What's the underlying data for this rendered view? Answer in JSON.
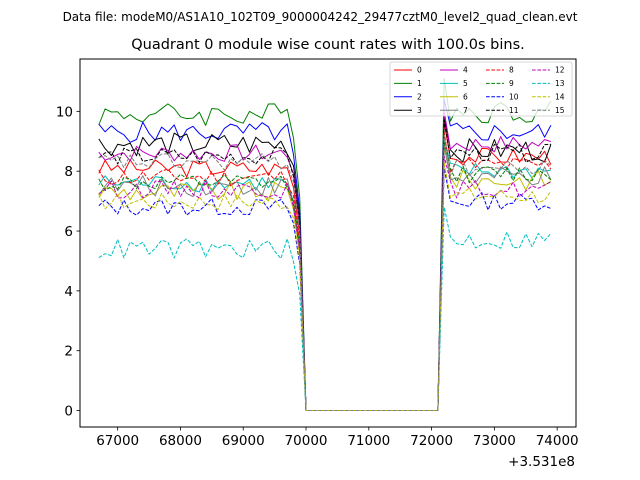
{
  "chart_data": {
    "type": "line",
    "suptitle": "Data file: modeM0/AS1A10_102T09_9000004242_29477cztM0_level2_quad_clean.evt",
    "title": "Quadrant 0 module wise count rates with 100.0s bins.",
    "xlabel": "",
    "ylabel": "",
    "x_offset_label": "+3.531e8",
    "xlim": [
      66400,
      74300
    ],
    "ylim": [
      -0.55,
      11.75
    ],
    "xticks": [
      67000,
      68000,
      69000,
      70000,
      71000,
      72000,
      73000,
      74000
    ],
    "xtick_labels": [
      "67000",
      "68000",
      "69000",
      "70000",
      "71000",
      "72000",
      "73000",
      "74000"
    ],
    "yticks": [
      0,
      2,
      4,
      6,
      8,
      10
    ],
    "ytick_labels": [
      "0",
      "2",
      "4",
      "6",
      "8",
      "10"
    ],
    "grid": false,
    "legend_position": "top-right",
    "legend_columns": 4,
    "x_segments": {
      "first": {
        "start": 66700,
        "step": 100,
        "count": 33
      },
      "gap_zero": [
        70000,
        72100
      ],
      "second": {
        "start": 72200,
        "step": 100,
        "count": 18
      }
    },
    "series": [
      {
        "name": "0",
        "color": "#ff0000",
        "dash": "solid",
        "level": 8.1,
        "amp": 0.3,
        "level2": 8.5
      },
      {
        "name": "1",
        "color": "#008000",
        "dash": "solid",
        "level": 9.9,
        "amp": 0.4,
        "level2": 10.0
      },
      {
        "name": "2",
        "color": "#0000ff",
        "dash": "solid",
        "level": 9.3,
        "amp": 0.35,
        "level2": 9.3
      },
      {
        "name": "3",
        "color": "#000000",
        "dash": "solid",
        "level": 8.9,
        "amp": 0.4,
        "level2": 8.7
      },
      {
        "name": "4",
        "color": "#bf00bf",
        "dash": "solid",
        "level": 8.6,
        "amp": 0.3,
        "level2": 8.9
      },
      {
        "name": "5",
        "color": "#00bfbf",
        "dash": "solid",
        "level": 7.6,
        "amp": 0.3,
        "level2": 8.0
      },
      {
        "name": "6",
        "color": "#bfbf00",
        "dash": "solid",
        "level": 7.3,
        "amp": 0.35,
        "level2": 7.7
      },
      {
        "name": "7",
        "color": "#808080",
        "dash": "solid",
        "level": 7.5,
        "amp": 0.35,
        "level2": 7.8
      },
      {
        "name": "8",
        "color": "#ff0000",
        "dash": "dashed",
        "level": 7.8,
        "amp": 0.3,
        "level2": 8.2
      },
      {
        "name": "9",
        "color": "#008000",
        "dash": "dashed",
        "level": 7.6,
        "amp": 0.3,
        "level2": 7.9
      },
      {
        "name": "10",
        "color": "#0000ff",
        "dash": "dashed",
        "level": 6.8,
        "amp": 0.3,
        "level2": 7.0
      },
      {
        "name": "11",
        "color": "#000000",
        "dash": "dashed",
        "level": 8.5,
        "amp": 0.3,
        "level2": 8.6
      },
      {
        "name": "12",
        "color": "#bf00bf",
        "dash": "dashed",
        "level": 7.4,
        "amp": 0.3,
        "level2": 7.4
      },
      {
        "name": "13",
        "color": "#00bfbf",
        "dash": "dashed",
        "level": 5.4,
        "amp": 0.35,
        "level2": 5.7
      },
      {
        "name": "14",
        "color": "#bfbf00",
        "dash": "dashed",
        "level": 7.0,
        "amp": 0.3,
        "level2": 7.2
      },
      {
        "name": "15",
        "color": "#808080",
        "dash": "dashed",
        "level": 8.3,
        "amp": 0.3,
        "level2": 8.1
      }
    ]
  }
}
